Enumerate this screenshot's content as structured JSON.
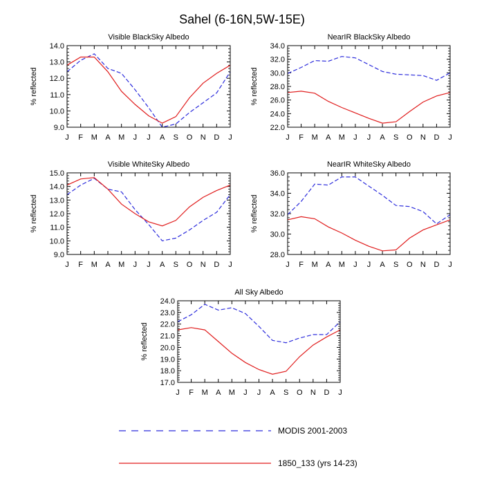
{
  "figure": {
    "title": "Sahel (6-16N,5W-15E)",
    "colors": {
      "modis": "#2b2bdc",
      "model": "#e01b1b",
      "axis": "#000000"
    }
  },
  "legend": {
    "entries": [
      {
        "series": "MODIS 2001-2003",
        "label": "MODIS 2001-2003",
        "style": "dashed",
        "color": "#2b2bdc"
      },
      {
        "series": "1850_133 (yrs 14-23)",
        "label": "1850_133 (yrs 14-23)",
        "style": "solid",
        "color": "#e01b1b"
      }
    ]
  },
  "chart_data": [
    {
      "type": "line",
      "title": "Visible BlackSky Albedo",
      "ylabel": "% reflected",
      "xlabel": "",
      "categories": [
        "J",
        "F",
        "M",
        "A",
        "M",
        "J",
        "J",
        "A",
        "S",
        "O",
        "N",
        "D",
        "J"
      ],
      "ylim": [
        9.0,
        14.0
      ],
      "yticks": [
        "9.0",
        "10.0",
        "11.0",
        "12.0",
        "13.0",
        "14.0"
      ],
      "series": [
        {
          "name": "MODIS 2001-2003",
          "style": "dashed",
          "values": [
            12.4,
            13.1,
            13.5,
            12.6,
            12.3,
            11.3,
            10.2,
            9.0,
            9.2,
            9.9,
            10.5,
            11.1,
            12.4
          ]
        },
        {
          "name": "1850_133 (yrs 14-23)",
          "style": "solid",
          "values": [
            12.8,
            13.3,
            13.3,
            12.4,
            11.2,
            10.4,
            9.7,
            9.25,
            9.65,
            10.8,
            11.7,
            12.3,
            12.8
          ]
        }
      ]
    },
    {
      "type": "line",
      "title": "NearIR BlackSky Albedo",
      "ylabel": "% reflected",
      "xlabel": "",
      "categories": [
        "J",
        "F",
        "M",
        "A",
        "M",
        "J",
        "J",
        "A",
        "S",
        "O",
        "N",
        "D",
        "J"
      ],
      "ylim": [
        22.0,
        34.0
      ],
      "yticks": [
        "22.0",
        "24.0",
        "26.0",
        "28.0",
        "30.0",
        "32.0",
        "34.0"
      ],
      "series": [
        {
          "name": "MODIS 2001-2003",
          "style": "dashed",
          "values": [
            29.9,
            30.8,
            31.8,
            31.7,
            32.4,
            32.2,
            31.2,
            30.2,
            29.8,
            29.7,
            29.6,
            28.9,
            30.0
          ]
        },
        {
          "name": "1850_133 (yrs 14-23)",
          "style": "solid",
          "values": [
            27.1,
            27.3,
            27.0,
            25.8,
            24.9,
            24.1,
            23.3,
            22.6,
            22.8,
            24.3,
            25.7,
            26.6,
            27.1
          ]
        }
      ]
    },
    {
      "type": "line",
      "title": "Visible WhiteSky Albedo",
      "ylabel": "% reflected",
      "xlabel": "",
      "categories": [
        "J",
        "F",
        "M",
        "A",
        "M",
        "J",
        "J",
        "A",
        "S",
        "O",
        "N",
        "D",
        "J"
      ],
      "ylim": [
        9.0,
        15.0
      ],
      "yticks": [
        "9.0",
        "10.0",
        "11.0",
        "12.0",
        "13.0",
        "14.0",
        "15.0"
      ],
      "series": [
        {
          "name": "MODIS 2001-2003",
          "style": "dashed",
          "values": [
            13.4,
            14.1,
            14.6,
            13.8,
            13.6,
            12.3,
            11.2,
            10.0,
            10.2,
            10.8,
            11.5,
            12.1,
            13.4
          ]
        },
        {
          "name": "1850_133 (yrs 14-23)",
          "style": "solid",
          "values": [
            14.1,
            14.55,
            14.65,
            13.8,
            12.7,
            12.0,
            11.4,
            11.1,
            11.5,
            12.5,
            13.2,
            13.7,
            14.1
          ]
        }
      ]
    },
    {
      "type": "line",
      "title": "NearIR WhiteSky Albedo",
      "ylabel": "% reflected",
      "xlabel": "",
      "categories": [
        "J",
        "F",
        "M",
        "A",
        "M",
        "J",
        "J",
        "A",
        "S",
        "O",
        "N",
        "D",
        "J"
      ],
      "ylim": [
        28.0,
        36.0
      ],
      "yticks": [
        "28.0",
        "30.0",
        "32.0",
        "34.0",
        "36.0"
      ],
      "series": [
        {
          "name": "MODIS 2001-2003",
          "style": "dashed",
          "values": [
            31.9,
            33.2,
            34.9,
            34.8,
            35.6,
            35.6,
            34.7,
            33.8,
            32.8,
            32.7,
            32.2,
            31.0,
            31.9
          ]
        },
        {
          "name": "1850_133 (yrs 14-23)",
          "style": "solid",
          "values": [
            31.4,
            31.7,
            31.5,
            30.7,
            30.1,
            29.4,
            28.8,
            28.35,
            28.45,
            29.6,
            30.4,
            30.9,
            31.4
          ]
        }
      ]
    },
    {
      "type": "line",
      "title": "All Sky Albedo",
      "ylabel": "% reflected",
      "xlabel": "",
      "categories": [
        "J",
        "F",
        "M",
        "A",
        "M",
        "J",
        "J",
        "A",
        "S",
        "O",
        "N",
        "D",
        "J"
      ],
      "ylim": [
        17.0,
        24.0
      ],
      "yticks": [
        "17.0",
        "18.0",
        "19.0",
        "20.0",
        "21.0",
        "22.0",
        "23.0",
        "24.0"
      ],
      "series": [
        {
          "name": "MODIS 2001-2003",
          "style": "dashed",
          "values": [
            22.2,
            22.8,
            23.7,
            23.2,
            23.4,
            22.9,
            21.8,
            20.6,
            20.4,
            20.8,
            21.1,
            21.1,
            22.2
          ]
        },
        {
          "name": "1850_133 (yrs 14-23)",
          "style": "solid",
          "values": [
            21.5,
            21.7,
            21.5,
            20.5,
            19.5,
            18.7,
            18.1,
            17.7,
            17.95,
            19.2,
            20.2,
            20.9,
            21.5
          ]
        }
      ]
    }
  ]
}
